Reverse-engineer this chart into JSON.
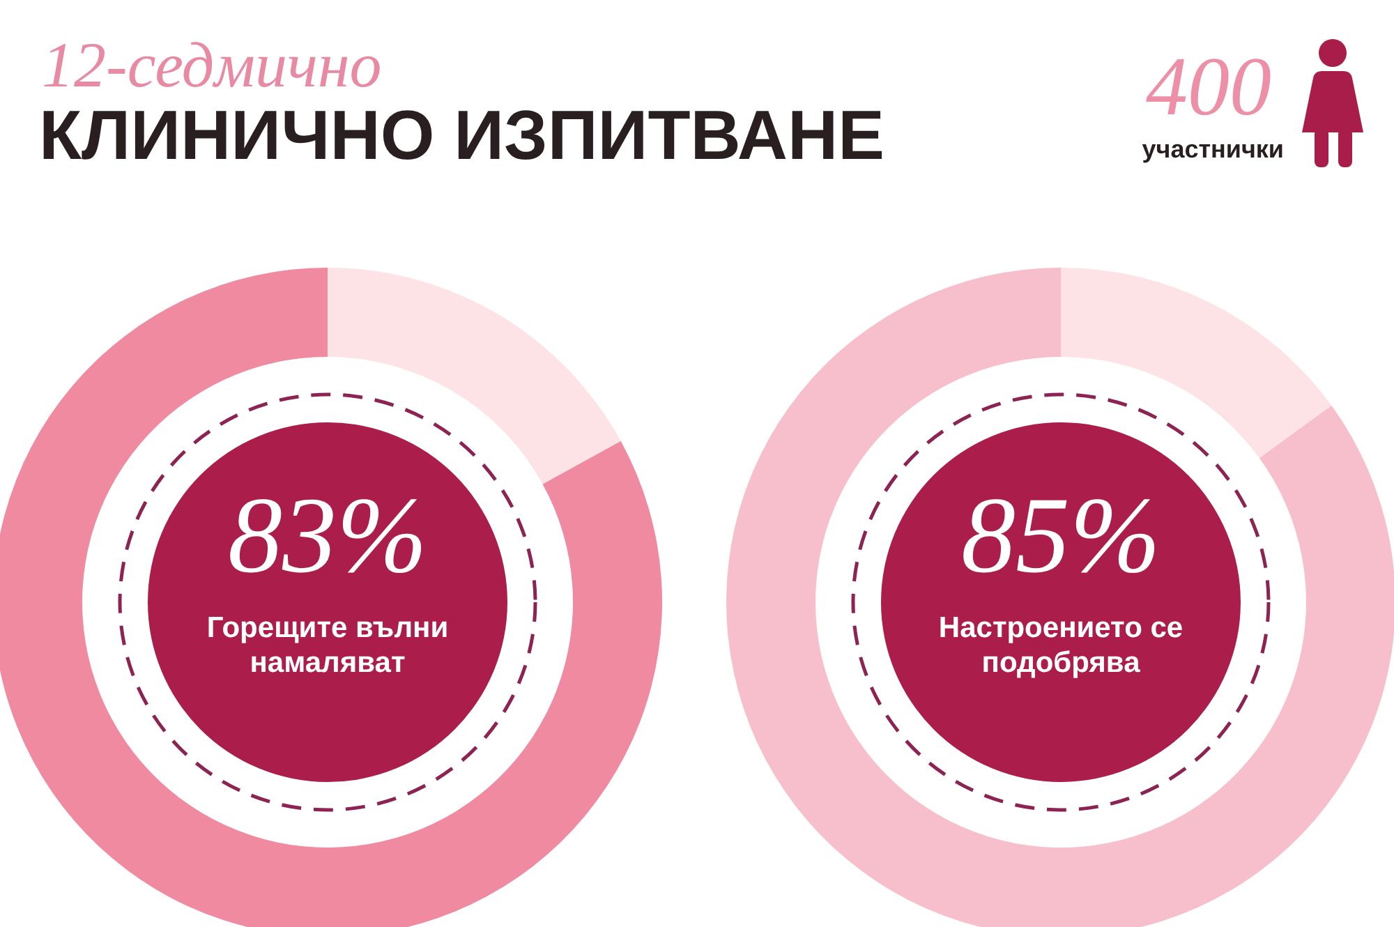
{
  "chart_data": [
    {
      "type": "donut",
      "title": "КЛИНИЧНО ИЗПИТВАНЕ",
      "subtitle": "12-седмично",
      "annotations": [
        "400",
        "участнички"
      ],
      "categories": [
        "Горещите вълни намаляват",
        null
      ],
      "values": [
        83,
        17
      ],
      "colors": [
        "#f08aa0",
        "#fde2e6"
      ],
      "value_labels": [
        "83%",
        null
      ]
    },
    {
      "type": "donut",
      "categories": [
        "Настроението се подобрява",
        null
      ],
      "values": [
        85,
        15
      ],
      "colors": [
        "#f7bfcb",
        "#fde2e6"
      ],
      "value_labels": [
        "85%",
        null
      ]
    }
  ]
}
